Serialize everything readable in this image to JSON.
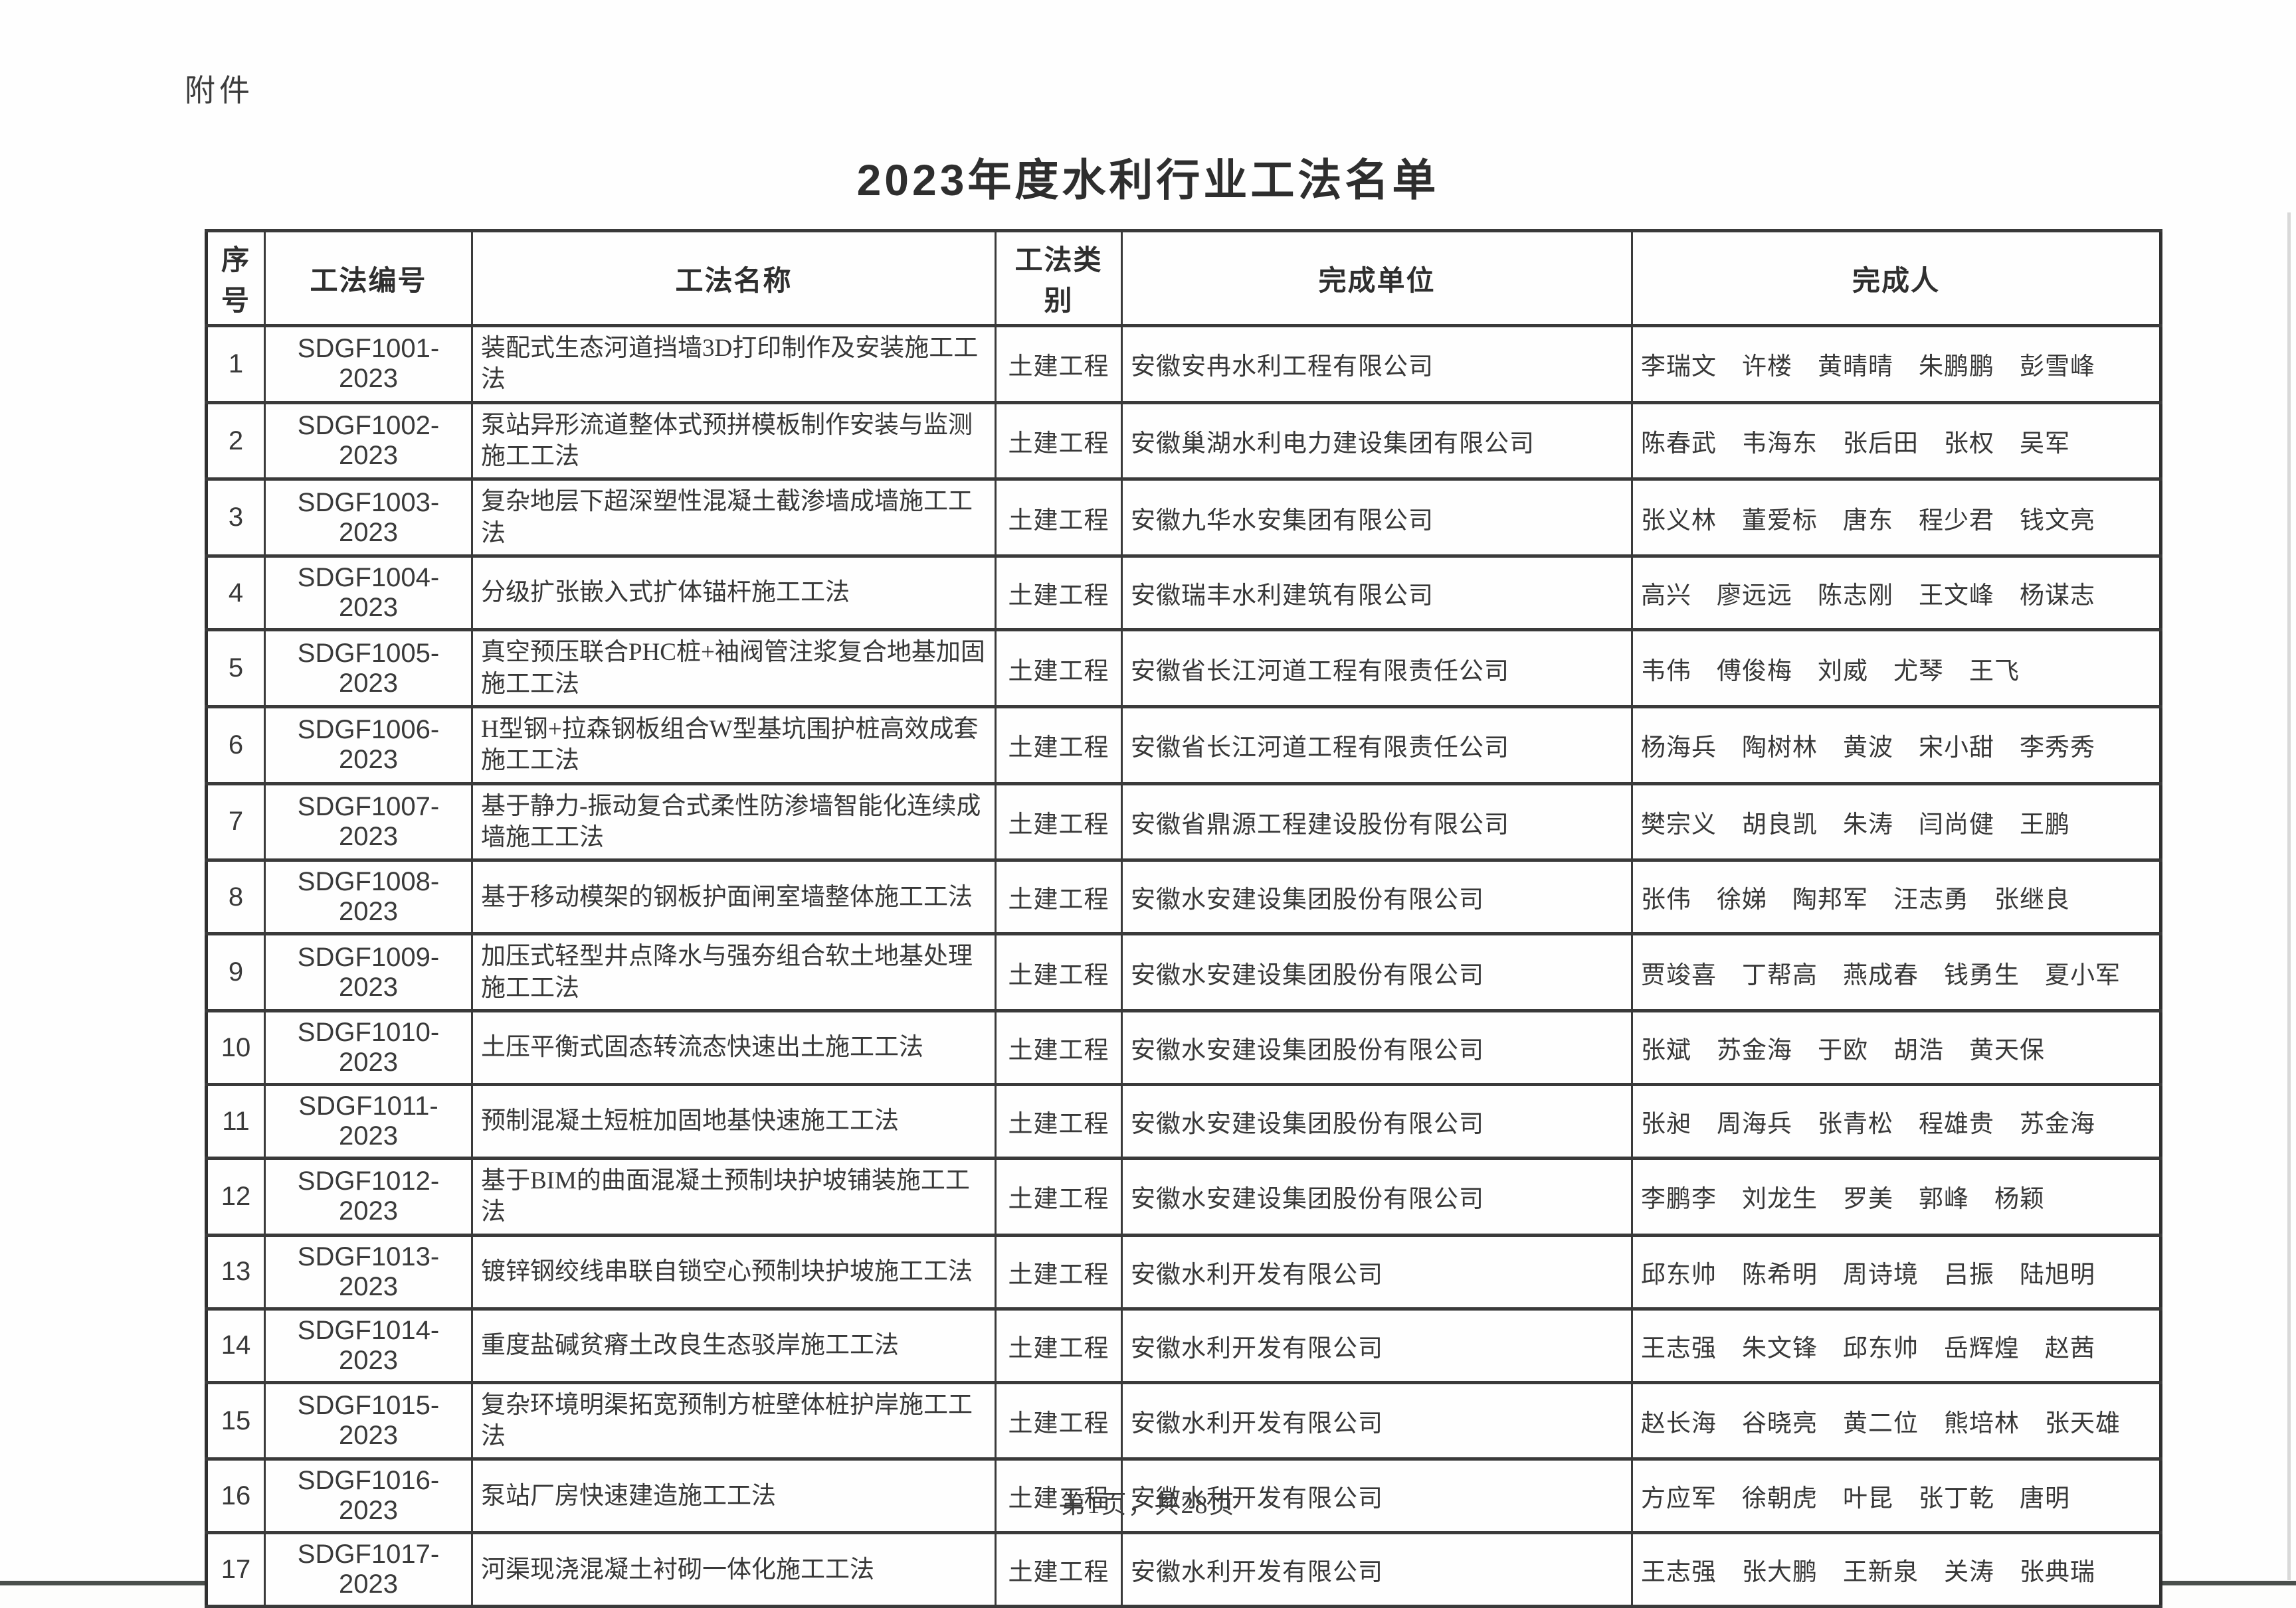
{
  "page": {
    "attachment_label": "附件",
    "title": "2023年度水利行业工法名单",
    "footer": "第1页，共28页"
  },
  "table": {
    "headers": [
      "序号",
      "工法编号",
      "工法名称",
      "工法类别",
      "完成单位",
      "完成人"
    ],
    "rows": [
      {
        "no": "1",
        "code": "SDGF1001-2023",
        "name": "装配式生态河道挡墙3D打印制作及安装施工工法",
        "category": "土建工程",
        "unit": "安徽安冉水利工程有限公司",
        "people": "李瑞文　许楼　黄晴晴　朱鹏鹏　彭雪峰"
      },
      {
        "no": "2",
        "code": "SDGF1002-2023",
        "name": "泵站异形流道整体式预拼模板制作安装与监测施工工法",
        "category": "土建工程",
        "unit": "安徽巢湖水利电力建设集团有限公司",
        "people": "陈春武　韦海东　张后田　张权　吴军"
      },
      {
        "no": "3",
        "code": "SDGF1003-2023",
        "name": "复杂地层下超深塑性混凝土截渗墙成墙施工工法",
        "category": "土建工程",
        "unit": "安徽九华水安集团有限公司",
        "people": "张义林　董爱标　唐东　程少君　钱文亮"
      },
      {
        "no": "4",
        "code": "SDGF1004-2023",
        "name": "分级扩张嵌入式扩体锚杆施工工法",
        "category": "土建工程",
        "unit": "安徽瑞丰水利建筑有限公司",
        "people": "高兴　廖远远　陈志刚　王文峰　杨谋志"
      },
      {
        "no": "5",
        "code": "SDGF1005-2023",
        "name": "真空预压联合PHC桩+袖阀管注浆复合地基加固施工工法",
        "category": "土建工程",
        "unit": "安徽省长江河道工程有限责任公司",
        "people": "韦伟　傅俊梅　刘威　尤琴　王飞"
      },
      {
        "no": "6",
        "code": "SDGF1006-2023",
        "name": "H型钢+拉森钢板组合W型基坑围护桩高效成套施工工法",
        "category": "土建工程",
        "unit": "安徽省长江河道工程有限责任公司",
        "people": "杨海兵　陶树林　黄波　宋小甜　李秀秀"
      },
      {
        "no": "7",
        "code": "SDGF1007-2023",
        "name": "基于静力-振动复合式柔性防渗墙智能化连续成墙施工工法",
        "category": "土建工程",
        "unit": "安徽省鼎源工程建设股份有限公司",
        "people": "樊宗义　胡良凯　朱涛　闫尚健　王鹏"
      },
      {
        "no": "8",
        "code": "SDGF1008-2023",
        "name": "基于移动模架的钢板护面闸室墙整体施工工法",
        "category": "土建工程",
        "unit": "安徽水安建设集团股份有限公司",
        "people": "张伟　徐娣　陶邦军　汪志勇　张继良"
      },
      {
        "no": "9",
        "code": "SDGF1009-2023",
        "name": "加压式轻型井点降水与强夯组合软土地基处理施工工法",
        "category": "土建工程",
        "unit": "安徽水安建设集团股份有限公司",
        "people": "贾竣喜　丁帮高　燕成春　钱勇生　夏小军"
      },
      {
        "no": "10",
        "code": "SDGF1010-2023",
        "name": "土压平衡式固态转流态快速出土施工工法",
        "category": "土建工程",
        "unit": "安徽水安建设集团股份有限公司",
        "people": "张斌　苏金海　于欧　胡浩　黄天保"
      },
      {
        "no": "11",
        "code": "SDGF1011-2023",
        "name": "预制混凝土短桩加固地基快速施工工法",
        "category": "土建工程",
        "unit": "安徽水安建设集团股份有限公司",
        "people": "张昶　周海兵　张青松　程雄贵　苏金海"
      },
      {
        "no": "12",
        "code": "SDGF1012-2023",
        "name": "基于BIM的曲面混凝土预制块护坡铺装施工工法",
        "category": "土建工程",
        "unit": "安徽水安建设集团股份有限公司",
        "people": "李鹏李　刘龙生　罗美　郭峰　杨颖"
      },
      {
        "no": "13",
        "code": "SDGF1013-2023",
        "name": "镀锌钢绞线串联自锁空心预制块护坡施工工法",
        "category": "土建工程",
        "unit": "安徽水利开发有限公司",
        "people": "邱东帅　陈希明　周诗境　吕振　陆旭明"
      },
      {
        "no": "14",
        "code": "SDGF1014-2023",
        "name": "重度盐碱贫瘠土改良生态驳岸施工工法",
        "category": "土建工程",
        "unit": "安徽水利开发有限公司",
        "people": "王志强　朱文锋　邱东帅　岳辉煌　赵茜"
      },
      {
        "no": "15",
        "code": "SDGF1015-2023",
        "name": "复杂环境明渠拓宽预制方桩壁体桩护岸施工工法",
        "category": "土建工程",
        "unit": "安徽水利开发有限公司",
        "people": "赵长海　谷晓亮　黄二位　熊培林　张天雄"
      },
      {
        "no": "16",
        "code": "SDGF1016-2023",
        "name": "泵站厂房快速建造施工工法",
        "category": "土建工程",
        "unit": "安徽水利开发有限公司",
        "people": "方应军　徐朝虎　叶昆　张丁乾　唐明"
      },
      {
        "no": "17",
        "code": "SDGF1017-2023",
        "name": "河渠现浇混凝土衬砌一体化施工工法",
        "category": "土建工程",
        "unit": "安徽水利开发有限公司",
        "people": "王志强　张大鹏　王新泉　关涛　张典瑞"
      }
    ]
  }
}
